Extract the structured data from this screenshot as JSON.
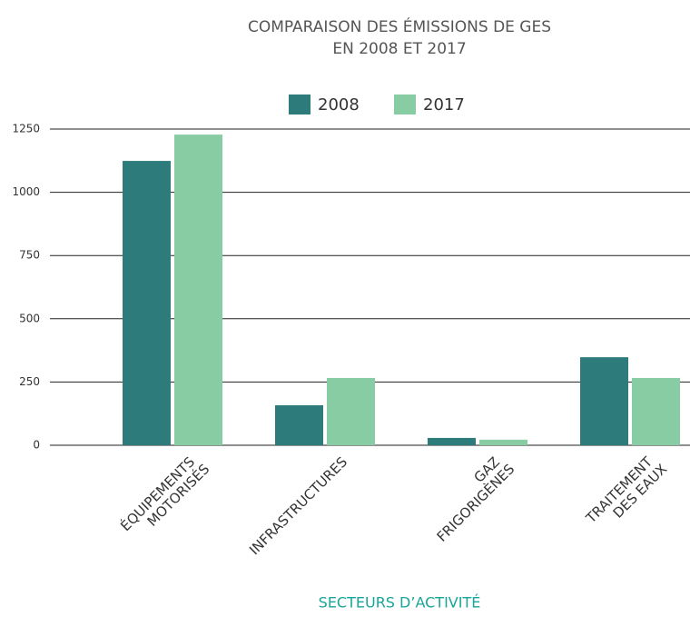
{
  "chart_data": {
    "type": "bar",
    "title": [
      "COMPARAISON DES ÉMISSIONS DE GES",
      "EN 2008 ET 2017"
    ],
    "xlabel": "SECTEURS D’ACTIVITÉ",
    "categories": [
      [
        "ÉQUIPEMENTS",
        "MOTORISÉS"
      ],
      [
        "INFRASTRUCTURES"
      ],
      [
        "GAZ",
        "FRIGORIGÈNES"
      ],
      [
        "TRAITEMENT",
        "DES EAUX"
      ]
    ],
    "series": [
      {
        "name": "2008",
        "color": "#2e7b7c",
        "values": [
          1124,
          158,
          29,
          348
        ]
      },
      {
        "name": "2017",
        "color": "#88cca4",
        "values": [
          1228,
          266,
          22,
          266
        ]
      }
    ],
    "ylim": [
      0,
      1250
    ],
    "yticks": [
      0,
      250,
      500,
      750,
      1000,
      1250
    ],
    "grid": true,
    "legend": "top"
  }
}
